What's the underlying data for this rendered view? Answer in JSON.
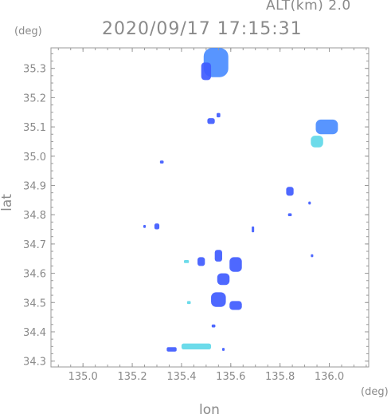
{
  "chart_data": {
    "type": "heatmap",
    "title": "2020/09/17 17:15:31",
    "subtitle": "ALT(km) 2.0",
    "xlabel": "lon",
    "ylabel": "lat",
    "xunit": "(deg)",
    "yunit": "(deg)",
    "xlim": [
      134.87,
      136.16
    ],
    "ylim": [
      34.28,
      35.37
    ],
    "xticks": [
      "135.0",
      "135.2",
      "135.4",
      "135.6",
      "135.8",
      "136.0"
    ],
    "xtick_values": [
      135.0,
      135.2,
      135.4,
      135.6,
      135.8,
      136.0
    ],
    "yticks": [
      "34.3",
      "34.4",
      "34.5",
      "34.6",
      "34.7",
      "34.8",
      "34.9",
      "35.0",
      "35.1",
      "35.2",
      "35.3"
    ],
    "ytick_values": [
      34.3,
      34.4,
      34.5,
      34.6,
      34.7,
      34.8,
      34.9,
      35.0,
      35.1,
      35.2,
      35.3
    ],
    "grid": false,
    "colors": {
      "low": "#3f5bff",
      "mid": "#4a8cff",
      "high": "#5fd8e8",
      "axis": "#9a9a9a"
    },
    "echoes": [
      {
        "lon": 135.54,
        "lat": 35.32,
        "w": 0.1,
        "h": 0.1,
        "intensity": "mid"
      },
      {
        "lon": 135.5,
        "lat": 35.29,
        "w": 0.04,
        "h": 0.06,
        "intensity": "low"
      },
      {
        "lon": 135.52,
        "lat": 35.12,
        "w": 0.03,
        "h": 0.02,
        "intensity": "low"
      },
      {
        "lon": 135.55,
        "lat": 35.14,
        "w": 0.015,
        "h": 0.015,
        "intensity": "low"
      },
      {
        "lon": 135.99,
        "lat": 35.1,
        "w": 0.09,
        "h": 0.05,
        "intensity": "mid"
      },
      {
        "lon": 135.95,
        "lat": 35.05,
        "w": 0.05,
        "h": 0.04,
        "intensity": "high"
      },
      {
        "lon": 135.32,
        "lat": 34.98,
        "w": 0.015,
        "h": 0.01,
        "intensity": "low"
      },
      {
        "lon": 135.84,
        "lat": 34.88,
        "w": 0.03,
        "h": 0.03,
        "intensity": "low"
      },
      {
        "lon": 135.92,
        "lat": 34.84,
        "w": 0.01,
        "h": 0.01,
        "intensity": "low"
      },
      {
        "lon": 135.84,
        "lat": 34.8,
        "w": 0.015,
        "h": 0.01,
        "intensity": "low"
      },
      {
        "lon": 135.3,
        "lat": 34.76,
        "w": 0.02,
        "h": 0.02,
        "intensity": "low"
      },
      {
        "lon": 135.25,
        "lat": 34.76,
        "w": 0.01,
        "h": 0.01,
        "intensity": "low"
      },
      {
        "lon": 135.69,
        "lat": 34.75,
        "w": 0.01,
        "h": 0.02,
        "intensity": "low"
      },
      {
        "lon": 135.55,
        "lat": 34.66,
        "w": 0.03,
        "h": 0.04,
        "intensity": "low"
      },
      {
        "lon": 135.48,
        "lat": 34.64,
        "w": 0.03,
        "h": 0.03,
        "intensity": "low"
      },
      {
        "lon": 135.62,
        "lat": 34.63,
        "w": 0.05,
        "h": 0.05,
        "intensity": "low"
      },
      {
        "lon": 135.57,
        "lat": 34.58,
        "w": 0.05,
        "h": 0.04,
        "intensity": "low"
      },
      {
        "lon": 135.42,
        "lat": 34.64,
        "w": 0.02,
        "h": 0.01,
        "intensity": "high"
      },
      {
        "lon": 135.55,
        "lat": 34.51,
        "w": 0.06,
        "h": 0.05,
        "intensity": "low"
      },
      {
        "lon": 135.62,
        "lat": 34.49,
        "w": 0.05,
        "h": 0.03,
        "intensity": "low"
      },
      {
        "lon": 135.43,
        "lat": 34.5,
        "w": 0.015,
        "h": 0.01,
        "intensity": "high"
      },
      {
        "lon": 135.93,
        "lat": 34.66,
        "w": 0.01,
        "h": 0.01,
        "intensity": "low"
      },
      {
        "lon": 135.53,
        "lat": 34.42,
        "w": 0.015,
        "h": 0.01,
        "intensity": "low"
      },
      {
        "lon": 135.46,
        "lat": 34.35,
        "w": 0.12,
        "h": 0.02,
        "intensity": "high"
      },
      {
        "lon": 135.36,
        "lat": 34.34,
        "w": 0.04,
        "h": 0.015,
        "intensity": "low"
      },
      {
        "lon": 135.57,
        "lat": 34.34,
        "w": 0.01,
        "h": 0.01,
        "intensity": "low"
      }
    ]
  }
}
